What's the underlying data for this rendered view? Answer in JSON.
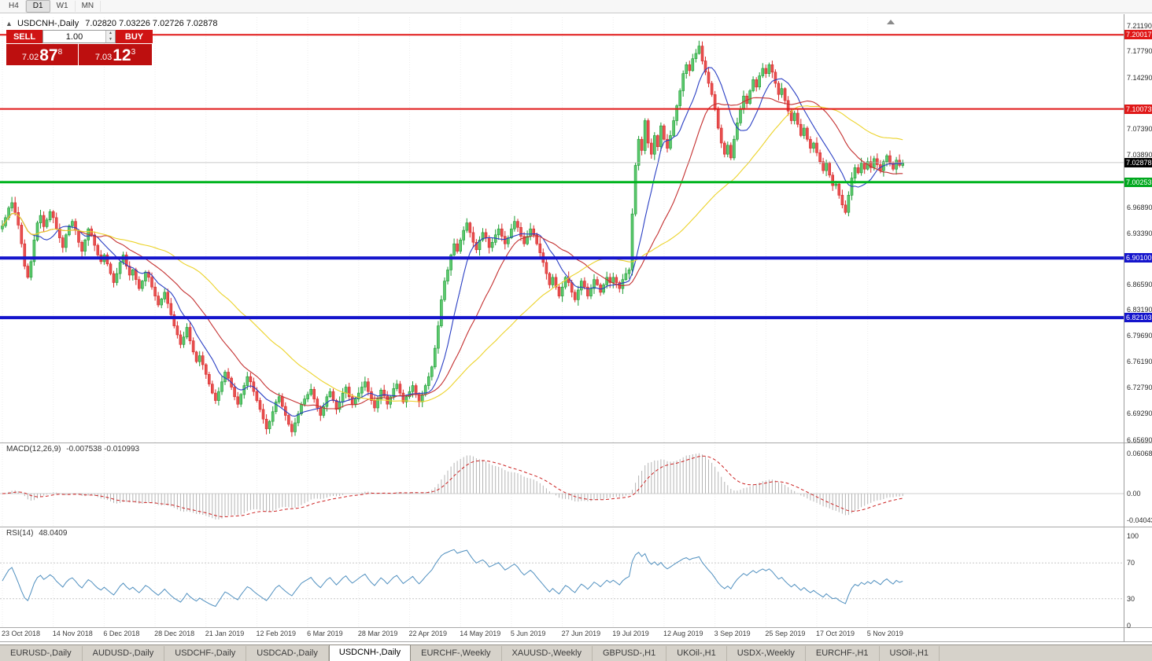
{
  "toolbar": {
    "periods": [
      "H4",
      "D1",
      "W1",
      "MN"
    ],
    "active_period": "D1"
  },
  "chart_header": {
    "symbol_title": "USDCNH-,Daily",
    "ohlc": "7.02820 7.03226 7.02726 7.02878"
  },
  "trade_panel": {
    "sell_label": "SELL",
    "buy_label": "BUY",
    "volume": "1.00",
    "sell_price": {
      "prefix": "7.02",
      "big": "87",
      "sup": "8"
    },
    "buy_price": {
      "prefix": "7.03",
      "big": "12",
      "sup": "3"
    }
  },
  "price_axis": {
    "ticks": [
      "7.21190",
      "7.17790",
      "7.14290",
      "7.07390",
      "7.03890",
      "6.96890",
      "6.93390",
      "6.86590",
      "6.83190",
      "6.79690",
      "6.76190",
      "6.72790",
      "6.69290",
      "6.65690"
    ],
    "tags": [
      {
        "value": "7.20017",
        "color": "#e01818"
      },
      {
        "value": "7.10073",
        "color": "#e01818"
      },
      {
        "value": "7.02878",
        "color": "#000000"
      },
      {
        "value": "7.00253",
        "color": "#00a81e"
      },
      {
        "value": "6.90100",
        "color": "#1414cc"
      },
      {
        "value": "6.82103",
        "color": "#1414cc"
      }
    ]
  },
  "macd_panel": {
    "title": "MACD(12,26,9)",
    "values": "-0.007538 -0.010993"
  },
  "rsi_panel": {
    "title": "RSI(14)",
    "value": "48.0409"
  },
  "date_axis": [
    "23 Oct 2018",
    "14 Nov 2018",
    "6 Dec 2018",
    "28 Dec 2018",
    "21 Jan 2019",
    "12 Feb 2019",
    "6 Mar 2019",
    "28 Mar 2019",
    "22 Apr 2019",
    "14 May 2019",
    "5 Jun 2019",
    "27 Jun 2019",
    "19 Jul 2019",
    "12 Aug 2019",
    "3 Sep 2019",
    "25 Sep 2019",
    "17 Oct 2019",
    "5 Nov 2019"
  ],
  "tabs": {
    "items": [
      {
        "label": "EURUSD-,Daily",
        "active": false
      },
      {
        "label": "AUDUSD-,Daily",
        "active": false
      },
      {
        "label": "USDCHF-,Daily",
        "active": false
      },
      {
        "label": "USDCAD-,Daily",
        "active": false
      },
      {
        "label": "USDCNH-,Daily",
        "active": true
      },
      {
        "label": "EURCHF-,Weekly",
        "active": false
      },
      {
        "label": "XAUUSD-,Weekly",
        "active": false
      },
      {
        "label": "GBPUSD-,H1",
        "active": false
      },
      {
        "label": "UKOil-,H1",
        "active": false
      },
      {
        "label": "USDX-,Weekly",
        "active": false
      },
      {
        "label": "EURCHF-,H1",
        "active": false
      },
      {
        "label": "USOil-,H1",
        "active": false
      }
    ]
  },
  "chart_data": {
    "type": "candlestick",
    "symbol": "USDCNH-",
    "timeframe": "Daily",
    "open": "7.02820",
    "high": "7.03226",
    "low": "7.02726",
    "close": "7.02878",
    "current_price": 7.02878,
    "price_range_visible": [
      6.6537,
      7.2235
    ],
    "bars_per_label": 16,
    "x_labels": [
      "23 Oct 2018",
      "14 Nov 2018",
      "6 Dec 2018",
      "28 Dec 2018",
      "21 Jan 2019",
      "12 Feb 2019",
      "6 Mar 2019",
      "28 Mar 2019",
      "22 Apr 2019",
      "14 May 2019",
      "5 Jun 2019",
      "27 Jun 2019",
      "19 Jul 2019",
      "12 Aug 2019",
      "3 Sep 2019",
      "25 Sep 2019",
      "17 Oct 2019",
      "5 Nov 2019"
    ],
    "closes": [
      6.944,
      6.955,
      6.968,
      6.975,
      6.962,
      6.945,
      6.92,
      6.89,
      6.875,
      6.896,
      6.925,
      6.948,
      6.958,
      6.943,
      6.952,
      6.963,
      6.955,
      6.94,
      6.928,
      6.915,
      6.932,
      6.944,
      6.95,
      6.938,
      6.922,
      6.91,
      6.925,
      6.94,
      6.932,
      6.918,
      6.905,
      6.896,
      6.905,
      6.893,
      6.88,
      6.868,
      6.88,
      6.895,
      6.905,
      6.89,
      6.878,
      6.885,
      6.872,
      6.86,
      6.87,
      6.882,
      6.875,
      6.862,
      6.85,
      6.838,
      6.846,
      6.855,
      6.84,
      6.825,
      6.81,
      6.798,
      6.785,
      6.795,
      6.808,
      6.79,
      6.775,
      6.762,
      6.77,
      6.758,
      6.745,
      6.732,
      6.72,
      6.71,
      6.722,
      6.735,
      6.748,
      6.74,
      6.728,
      6.715,
      6.705,
      6.718,
      6.73,
      6.742,
      6.735,
      6.722,
      6.71,
      6.698,
      6.685,
      6.672,
      6.682,
      6.695,
      6.708,
      6.715,
      6.702,
      6.69,
      6.678,
      6.668,
      6.68,
      6.692,
      6.705,
      6.712,
      6.718,
      6.725,
      6.712,
      6.7,
      6.69,
      6.702,
      6.715,
      6.722,
      6.71,
      6.698,
      6.708,
      6.72,
      6.728,
      6.715,
      6.705,
      6.712,
      6.72,
      6.728,
      6.735,
      6.722,
      6.71,
      6.7,
      6.712,
      6.724,
      6.716,
      6.705,
      6.715,
      6.726,
      6.732,
      6.72,
      6.708,
      6.715,
      6.722,
      6.73,
      6.718,
      6.708,
      6.718,
      6.73,
      6.742,
      6.755,
      6.78,
      6.81,
      6.845,
      6.87,
      6.885,
      6.905,
      6.92,
      6.91,
      6.925,
      6.938,
      6.948,
      6.935,
      6.922,
      6.912,
      6.925,
      6.935,
      6.928,
      6.915,
      6.922,
      6.932,
      6.94,
      6.93,
      6.92,
      6.928,
      6.94,
      6.95,
      6.942,
      6.93,
      6.92,
      6.93,
      6.94,
      6.932,
      6.92,
      6.908,
      6.895,
      6.88,
      6.865,
      6.875,
      6.862,
      6.85,
      6.862,
      6.875,
      6.868,
      6.855,
      6.845,
      6.858,
      6.87,
      6.862,
      6.85,
      6.86,
      6.872,
      6.865,
      6.855,
      6.865,
      6.875,
      6.868,
      6.875,
      6.868,
      6.86,
      6.872,
      6.88,
      6.885,
      6.96,
      7.025,
      7.06,
      7.045,
      7.085,
      7.055,
      7.04,
      7.065,
      7.05,
      7.078,
      7.06,
      7.048,
      7.065,
      7.085,
      7.105,
      7.125,
      7.148,
      7.16,
      7.152,
      7.168,
      7.175,
      7.185,
      7.165,
      7.15,
      7.135,
      7.12,
      7.1,
      7.075,
      7.055,
      7.04,
      7.052,
      7.035,
      7.06,
      7.082,
      7.1,
      7.118,
      7.108,
      7.125,
      7.14,
      7.13,
      7.145,
      7.155,
      7.148,
      7.16,
      7.15,
      7.135,
      7.12,
      7.128,
      7.112,
      7.098,
      7.085,
      7.095,
      7.08,
      7.065,
      7.075,
      7.06,
      7.048,
      7.055,
      7.042,
      7.03,
      7.018,
      7.028,
      7.012,
      6.998,
      7.0,
      6.985,
      6.972,
      6.962,
      6.985,
      7.008,
      7.022,
      7.015,
      7.028,
      7.02,
      7.03,
      7.022,
      7.034,
      7.026,
      7.018,
      7.03,
      7.038,
      7.028,
      7.02,
      7.032,
      7.025,
      7.02878
    ],
    "h_lines": [
      {
        "price": 7.20017,
        "color": "red"
      },
      {
        "price": 7.10073,
        "color": "red"
      },
      {
        "price": 7.00253,
        "color": "green"
      },
      {
        "price": 6.901,
        "color": "blue"
      },
      {
        "price": 6.82103,
        "color": "blue"
      }
    ],
    "moving_averages": [
      {
        "period": 10,
        "color": "#2a3fc4"
      },
      {
        "period": 24,
        "color": "#c43030"
      },
      {
        "period": 52,
        "color": "#ecd32a"
      }
    ],
    "indicators": {
      "macd": {
        "label": "MACD(12,26,9)",
        "fast": 12,
        "slow": 26,
        "signal": 9,
        "current_main": -0.007538,
        "current_signal": -0.010993,
        "axis_labels": [
          "0.060687",
          "0.00",
          "-0.040435"
        ],
        "axis_values": [
          0.060687,
          0,
          -0.040435
        ]
      },
      "rsi": {
        "label": "RSI(14)",
        "period": 14,
        "current": 48.0409,
        "axis_labels": [
          "100",
          "70",
          "30",
          "0"
        ],
        "axis_values": [
          100,
          70,
          30,
          0
        ],
        "levels": [
          70,
          30
        ]
      }
    }
  }
}
